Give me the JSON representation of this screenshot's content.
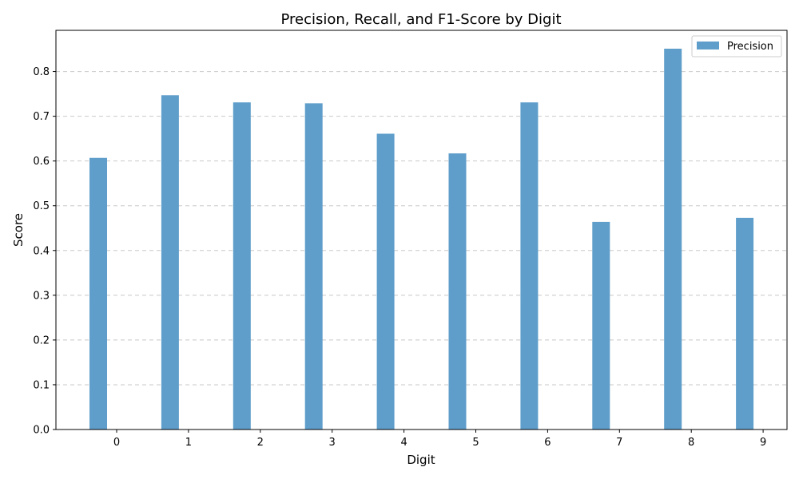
{
  "chart_data": {
    "type": "bar",
    "title": "Precision, Recall, and F1-Score by Digit",
    "xlabel": "Digit",
    "ylabel": "Score",
    "categories": [
      "0",
      "1",
      "2",
      "3",
      "4",
      "5",
      "6",
      "7",
      "8",
      "9"
    ],
    "series": [
      {
        "name": "Precision",
        "color": "#5f9ecb",
        "values": [
          0.607,
          0.747,
          0.731,
          0.729,
          0.661,
          0.617,
          0.731,
          0.464,
          0.851,
          0.473
        ]
      }
    ],
    "ylim": [
      0,
      0.892
    ],
    "yticks": [
      "0.0",
      "0.1",
      "0.2",
      "0.3",
      "0.4",
      "0.5",
      "0.6",
      "0.7",
      "0.8"
    ],
    "grid": "horizontal dashed",
    "legend_position": "top-right"
  }
}
